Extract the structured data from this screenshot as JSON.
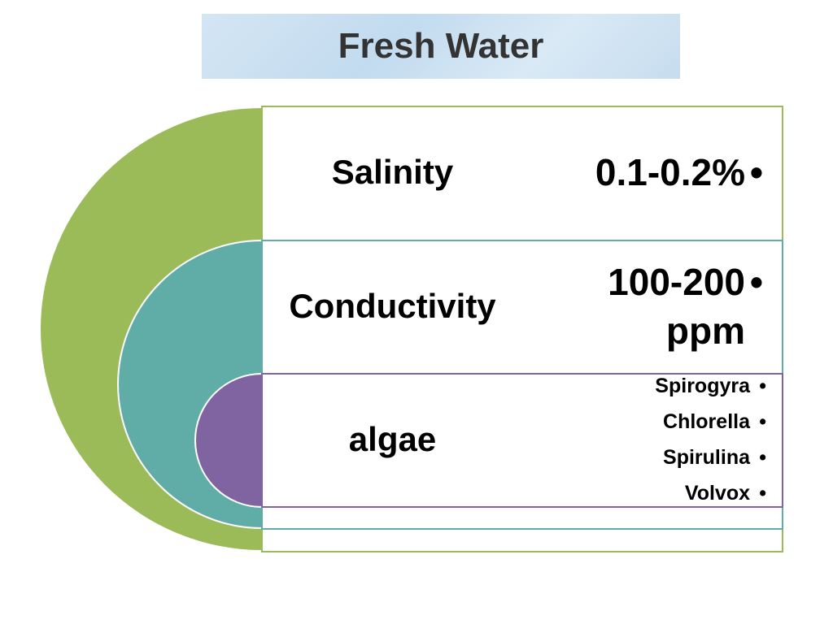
{
  "title": "Fresh Water",
  "rows": [
    {
      "label": "Salinity",
      "items": [
        "0.1-0.2%"
      ]
    },
    {
      "label": "Conductivity",
      "items": [
        "100-200 ppm"
      ]
    },
    {
      "label": "algae",
      "items": [
        "Spirogyra",
        "Chlorella",
        "Spirulina",
        "Volvox"
      ]
    }
  ]
}
